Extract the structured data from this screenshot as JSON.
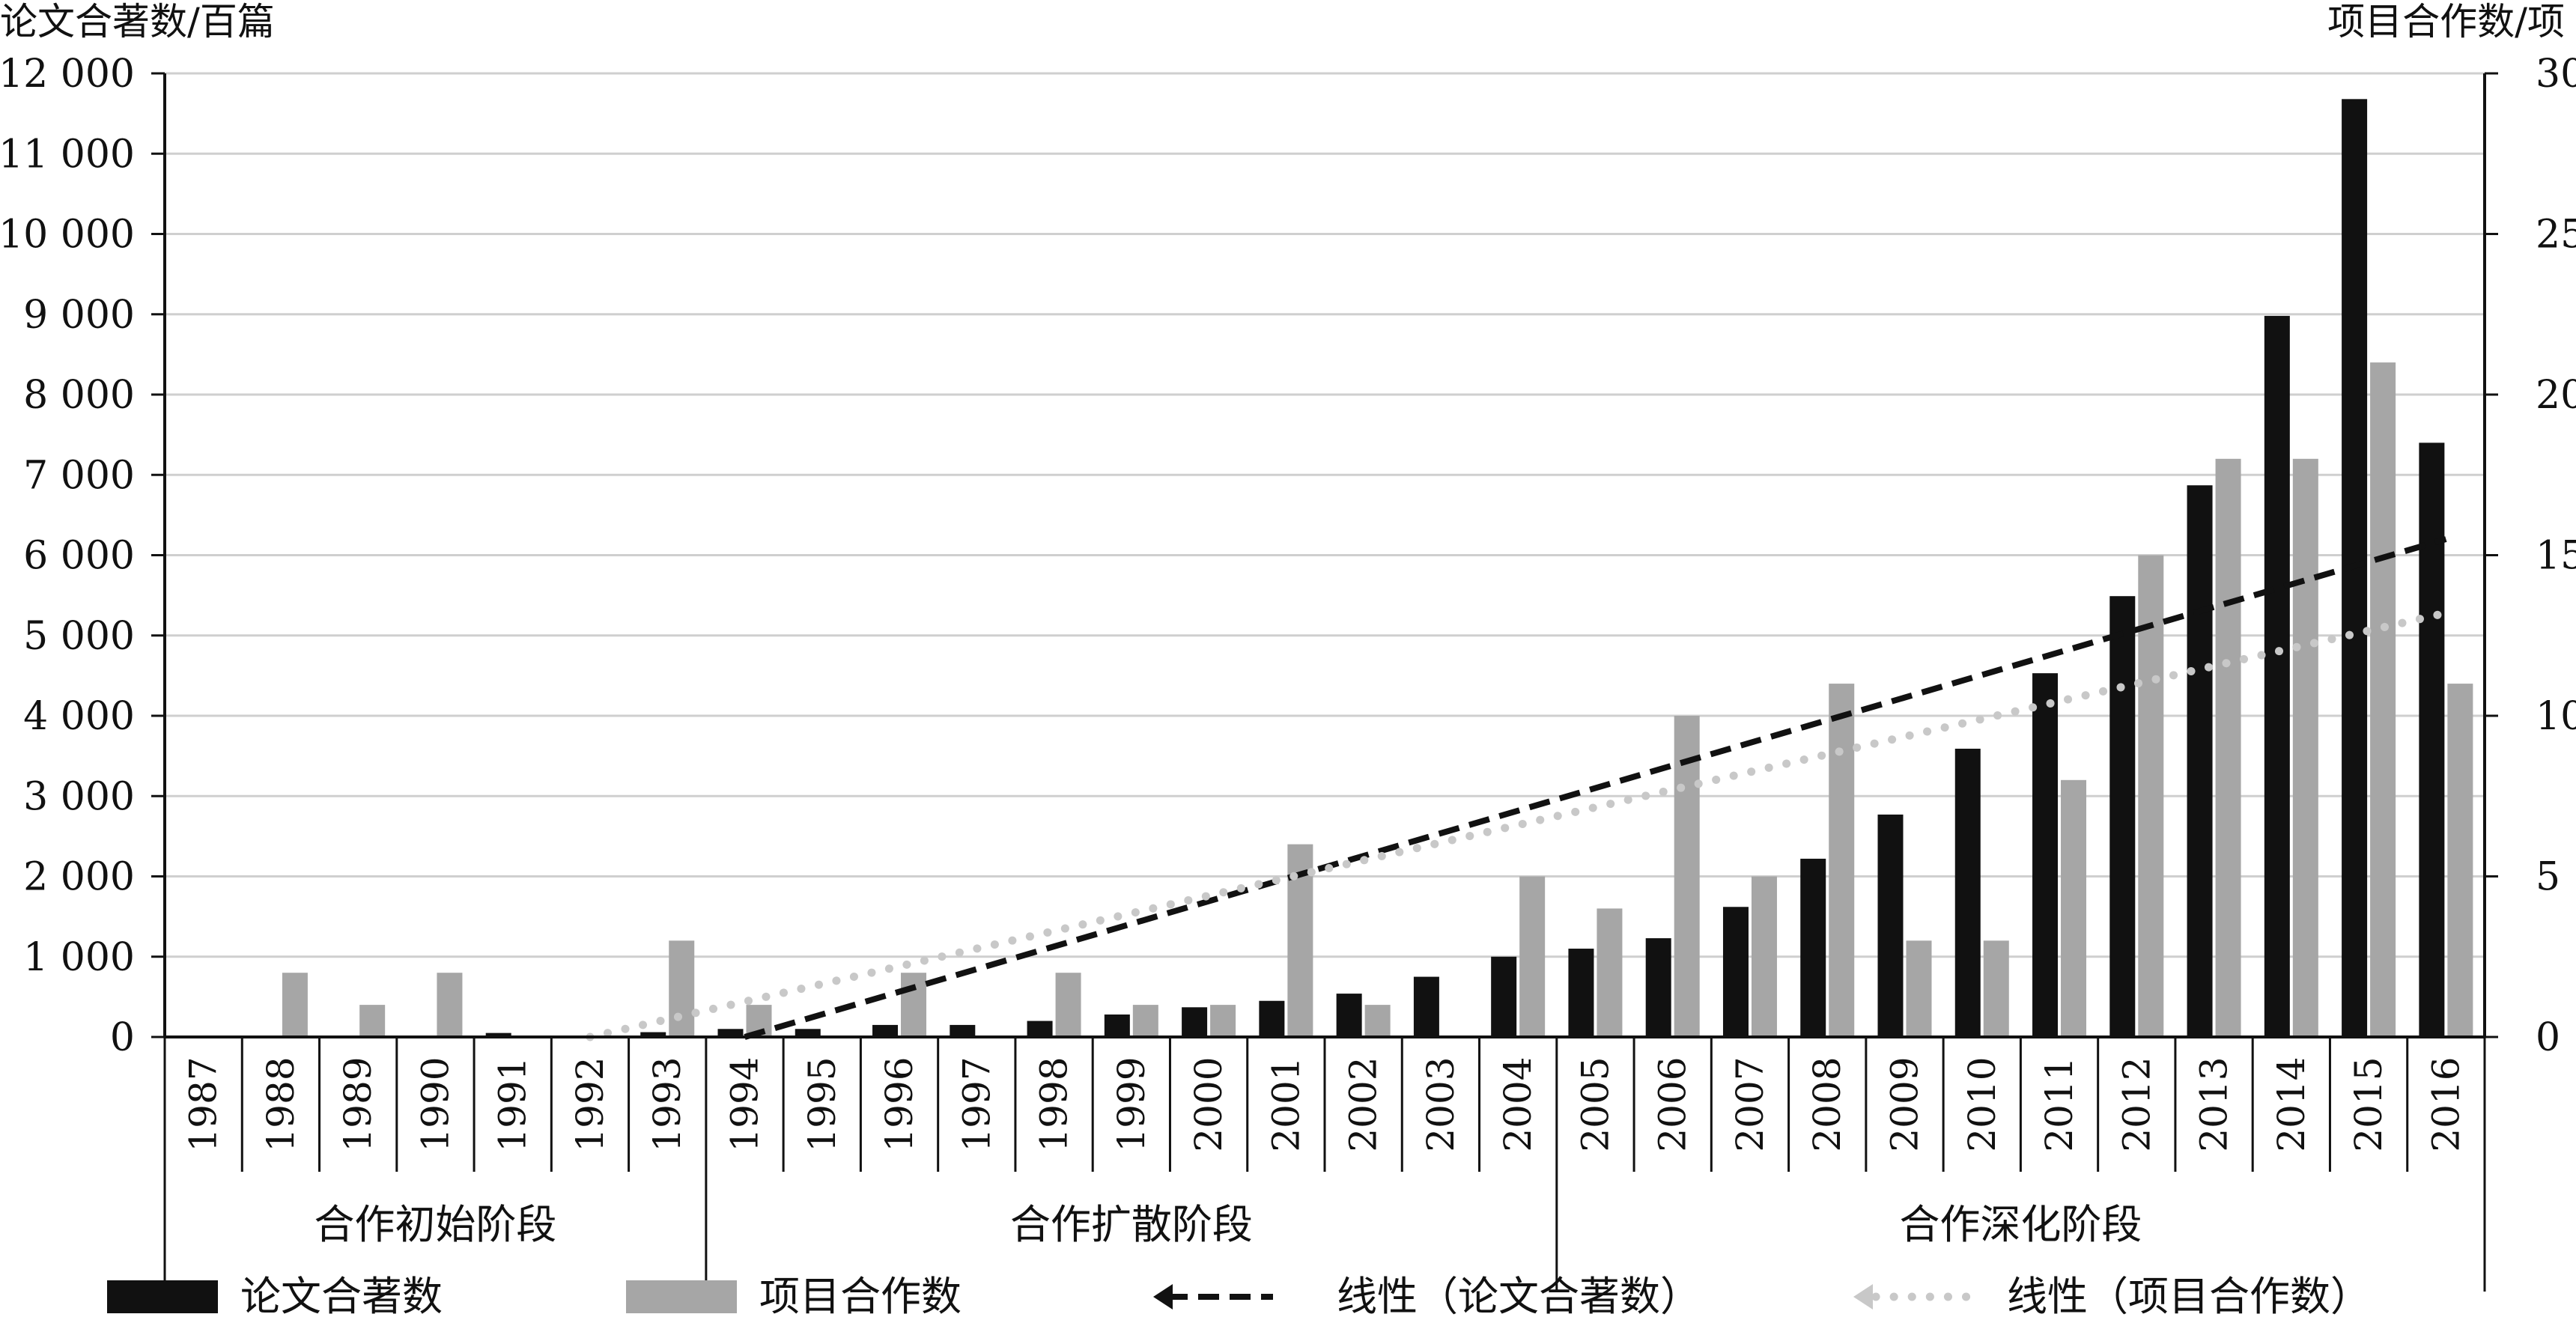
{
  "chart_data": {
    "type": "bar",
    "y_left_label": "论文合著数/百篇",
    "y_right_label": "项目合作数/项",
    "ylim_left": [
      0,
      12000
    ],
    "ylim_right": [
      0,
      30
    ],
    "y_left_ticks": [
      "0",
      "1 000",
      "2 000",
      "3 000",
      "4 000",
      "5 000",
      "6 000",
      "7 000",
      "8 000",
      "9 000",
      "10 000",
      "11 000",
      "12 000"
    ],
    "y_right_ticks": [
      "0",
      "5",
      "10",
      "15",
      "20",
      "25",
      "30"
    ],
    "grid": true,
    "categories": [
      "1987",
      "1988",
      "1989",
      "1990",
      "1991",
      "1992",
      "1993",
      "1994",
      "1995",
      "1996",
      "1997",
      "1998",
      "1999",
      "2000",
      "2001",
      "2002",
      "2003",
      "2004",
      "2005",
      "2006",
      "2007",
      "2008",
      "2009",
      "2010",
      "2011",
      "2012",
      "2013",
      "2014",
      "2015",
      "2016"
    ],
    "series": [
      {
        "name": "论文合著数",
        "axis": "left",
        "color": "#111111",
        "values": [
          0,
          0,
          0,
          0,
          50,
          0,
          60,
          100,
          100,
          150,
          150,
          200,
          280,
          370,
          450,
          540,
          750,
          1000,
          1100,
          1230,
          1620,
          2220,
          2770,
          3590,
          4530,
          5490,
          6870,
          8980,
          11680,
          7400
        ]
      },
      {
        "name": "项目合作数",
        "axis": "right",
        "color": "#a6a6a6",
        "values": [
          0,
          2,
          1,
          2,
          0,
          0,
          3,
          1,
          0,
          2,
          0,
          2,
          1,
          1,
          6,
          1,
          0,
          5,
          4,
          10,
          5,
          11,
          3,
          3,
          8,
          15,
          18,
          18,
          21,
          11
        ]
      }
    ],
    "trendlines": [
      {
        "name": "线性（论文合著数）",
        "axis": "left",
        "style": "dashed",
        "color": "#111111",
        "x_start": "1994",
        "x_end": "2016",
        "y_start": 0,
        "y_end": 6200
      },
      {
        "name": "线性（项目合作数）",
        "axis": "right",
        "style": "dotted",
        "color": "#c8c8c8",
        "x_start": "1992",
        "x_end": "2016",
        "y_start": 0,
        "y_end": 13.2
      }
    ],
    "phases": [
      {
        "label": "合作初始阶段",
        "from": "1987",
        "to": "1993"
      },
      {
        "label": "合作扩散阶段",
        "from": "1994",
        "to": "2004"
      },
      {
        "label": "合作深化阶段",
        "from": "2005",
        "to": "2016"
      }
    ],
    "legend_position": "bottom",
    "legend": [
      "论文合著数",
      "项目合作数",
      "线性（论文合著数）",
      "线性（项目合作数）"
    ]
  }
}
